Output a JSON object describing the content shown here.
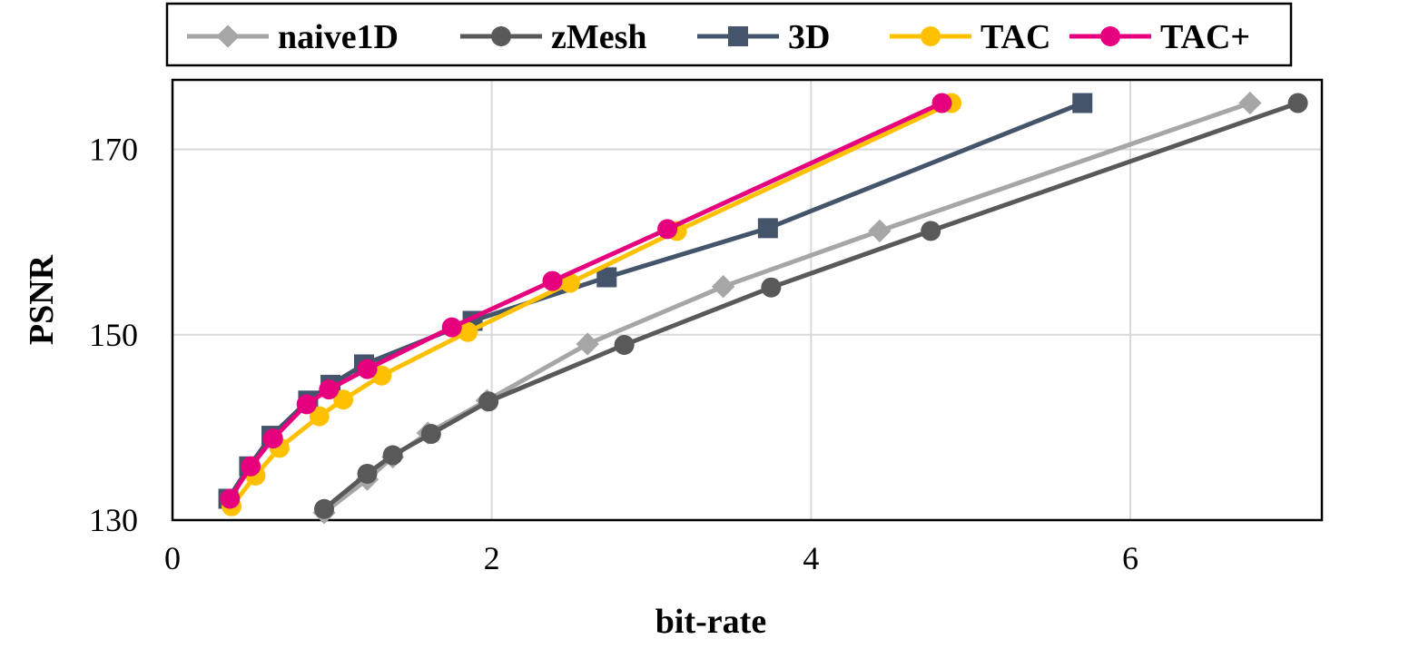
{
  "chart_data": {
    "type": "line",
    "title": "",
    "xlabel": "bit-rate",
    "ylabel": "PSNR",
    "xlim": [
      0,
      7.2
    ],
    "ylim": [
      130,
      177.5
    ],
    "xticks": [
      0,
      2,
      4,
      6
    ],
    "xtick_labels": [
      "0",
      "2",
      "4",
      "6"
    ],
    "yticks": [
      130,
      150,
      170
    ],
    "ytick_labels": [
      "130",
      "150",
      "170"
    ],
    "grid": true,
    "legend_position": "top",
    "series": [
      {
        "name": "naive1D",
        "color": "#a6a6a6",
        "marker": "diamond",
        "x": [
          0.95,
          1.22,
          1.38,
          1.6,
          1.97,
          2.6,
          3.45,
          4.43,
          6.75
        ],
        "y": [
          130.8,
          134.4,
          136.8,
          139.4,
          142.9,
          149.0,
          155.2,
          161.2,
          175.0
        ]
      },
      {
        "name": "zMesh",
        "color": "#595959",
        "marker": "circle",
        "x": [
          0.95,
          1.22,
          1.38,
          1.62,
          1.98,
          2.83,
          3.75,
          4.75,
          7.05
        ],
        "y": [
          131.2,
          135.0,
          137.0,
          139.3,
          142.8,
          148.9,
          155.1,
          161.2,
          175.0
        ]
      },
      {
        "name": "3D",
        "color": "#44546a",
        "marker": "square",
        "x": [
          0.35,
          0.48,
          0.62,
          0.85,
          0.99,
          1.2,
          1.88,
          2.72,
          3.73,
          5.7
        ],
        "y": [
          132.3,
          135.8,
          139.1,
          142.9,
          144.6,
          146.8,
          151.5,
          156.2,
          161.5,
          175.0
        ]
      },
      {
        "name": "TAC",
        "color": "#ffc000",
        "marker": "circle",
        "x": [
          0.37,
          0.52,
          0.67,
          0.92,
          1.07,
          1.31,
          1.85,
          2.49,
          3.16,
          4.88
        ],
        "y": [
          131.5,
          134.8,
          137.8,
          141.2,
          143.0,
          145.6,
          150.3,
          155.6,
          161.2,
          175.0
        ]
      },
      {
        "name": "TAC+",
        "color": "#e6007e",
        "marker": "circle",
        "x": [
          0.36,
          0.49,
          0.63,
          0.84,
          0.98,
          1.22,
          1.75,
          2.38,
          3.1,
          4.82
        ],
        "y": [
          132.3,
          135.8,
          138.8,
          142.5,
          144.1,
          146.3,
          150.8,
          155.8,
          161.4,
          175.0
        ]
      }
    ]
  }
}
